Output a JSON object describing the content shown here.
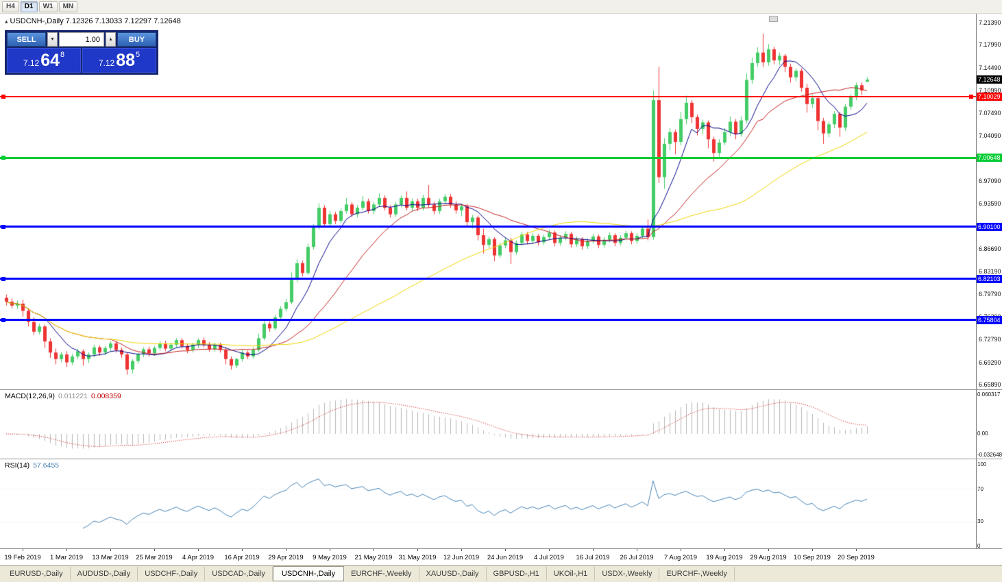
{
  "toolbar": {
    "timeframes": [
      "H4",
      "D1",
      "W1",
      "MN"
    ],
    "active": "D1"
  },
  "icons": {
    "one_click_toggle": "▴",
    "spin_down": "▼",
    "spin_up": "▲"
  },
  "trade_panel": {
    "sell_label": "SELL",
    "buy_label": "BUY",
    "volume": "1.00",
    "sell_price_prefix": "7.12",
    "sell_price_big": "64",
    "sell_price_sup": "8",
    "buy_price_prefix": "7.12",
    "buy_price_big": "88",
    "buy_price_sup": "5"
  },
  "tabs": {
    "items": [
      {
        "label": "EURUSD-,Daily",
        "active": false
      },
      {
        "label": "AUDUSD-,Daily",
        "active": false
      },
      {
        "label": "USDCHF-,Daily",
        "active": false
      },
      {
        "label": "USDCAD-,Daily",
        "active": false
      },
      {
        "label": "USDCNH-,Daily",
        "active": true
      },
      {
        "label": "EURCHF-,Weekly",
        "active": false
      },
      {
        "label": "XAUUSD-,Daily",
        "active": false
      },
      {
        "label": "GBPUSD-,H1",
        "active": false
      },
      {
        "label": "UKOil-,H1",
        "active": false
      },
      {
        "label": "USDX-,Weekly",
        "active": false
      },
      {
        "label": "EURCHF-,Weekly",
        "active": false
      }
    ]
  },
  "chart_data": {
    "type": "candlestick",
    "title": "USDCNH-,Daily",
    "symbol": "USDCNH-",
    "timeframe": "Daily",
    "ohlc": {
      "open": "7.12326",
      "high": "7.13033",
      "low": "7.12297",
      "close": "7.12648"
    },
    "ylim": [
      6.65154,
      7.22757
    ],
    "x0": 9,
    "bar_spacing": 8,
    "tick_x0": 33,
    "tick_dx": 64,
    "bull_color": "#44CC66",
    "bear_color": "#EE3333",
    "price_axis_labels": [
      "7.21390",
      "7.17990",
      "7.14490",
      "7.10990",
      "7.07490",
      "7.04090",
      "7.00590",
      "6.97090",
      "6.93590",
      "6.90190",
      "6.86690",
      "6.83190",
      "6.79790",
      "6.76290",
      "6.72790",
      "6.69290",
      "6.65890"
    ],
    "date_ticks": [
      "19 Feb 2019",
      "1 Mar 2019",
      "13 Mar 2019",
      "25 Mar 2019",
      "4 Apr 2019",
      "16 Apr 2019",
      "29 Apr 2019",
      "9 May 2019",
      "21 May 2019",
      "31 May 2019",
      "12 Jun 2019",
      "24 Jun 2019",
      "4 Jul 2019",
      "16 Jul 2019",
      "26 Jul 2019",
      "7 Aug 2019",
      "19 Aug 2019",
      "29 Aug 2019",
      "10 Sep 2019",
      "20 Sep 2019"
    ],
    "levels": [
      {
        "value": 7.10029,
        "label": "7.10029",
        "color": "#FF0000",
        "width": 2,
        "right_marker": true
      },
      {
        "value": 7.00648,
        "label": "7.00648",
        "color": "#00CC33",
        "width": 3,
        "right_marker": false
      },
      {
        "value": 6.901,
        "label": "6.90100",
        "color": "#0000FF",
        "width": 3,
        "right_marker": false
      },
      {
        "value": 6.82103,
        "label": "6.82103",
        "color": "#0000FF",
        "width": 3,
        "right_marker": false
      },
      {
        "value": 6.75804,
        "label": "6.75804",
        "color": "#0000FF",
        "width": 3,
        "right_marker": false
      }
    ],
    "current_price": {
      "value": 7.12648,
      "label": "7.12648",
      "color": "#000000"
    },
    "moving_averages": [
      {
        "period": 8,
        "color": "#00008B"
      },
      {
        "period": 20,
        "color": "#C22121"
      },
      {
        "period": 50,
        "color": "#EDD500"
      }
    ],
    "macd": {
      "label": "MACD(12,26,9)",
      "value_main": "0.011221",
      "value_signal": "0.008359",
      "fast": 12,
      "slow": 26,
      "signal": 9,
      "axis_labels": [
        "0.060317",
        "0.00",
        "-0.032648"
      ],
      "ylim": [
        -0.0381,
        0.06772
      ],
      "histogram_color": "#B6B6B6",
      "signal_color": "#CC0000"
    },
    "rsi": {
      "label": "RSI(14)",
      "value": "57.6455",
      "period": 14,
      "levels": [
        70,
        30
      ],
      "axis_labels": [
        "100",
        "70",
        "30",
        "0"
      ],
      "ylim": [
        -2.5,
        106.7
      ],
      "color": "#4682B4"
    },
    "candles": [
      [
        6.792,
        6.797,
        6.78,
        6.786
      ],
      [
        6.786,
        6.791,
        6.776,
        6.78
      ],
      [
        6.78,
        6.788,
        6.775,
        6.783
      ],
      [
        6.783,
        6.789,
        6.763,
        6.772
      ],
      [
        6.772,
        6.776,
        6.748,
        6.755
      ],
      [
        6.755,
        6.762,
        6.735,
        6.74
      ],
      [
        6.74,
        6.752,
        6.736,
        6.748
      ],
      [
        6.748,
        6.751,
        6.715,
        6.725
      ],
      [
        6.725,
        6.73,
        6.7,
        6.708
      ],
      [
        6.708,
        6.714,
        6.69,
        6.698
      ],
      [
        6.698,
        6.709,
        6.693,
        6.705
      ],
      [
        6.705,
        6.71,
        6.686,
        6.693
      ],
      [
        6.693,
        6.706,
        6.689,
        6.702
      ],
      [
        6.702,
        6.714,
        6.698,
        6.71
      ],
      [
        6.71,
        6.713,
        6.688,
        6.698
      ],
      [
        6.698,
        6.708,
        6.692,
        6.705
      ],
      [
        6.705,
        6.72,
        6.701,
        6.716
      ],
      [
        6.716,
        6.719,
        6.703,
        6.708
      ],
      [
        6.708,
        6.718,
        6.704,
        6.715
      ],
      [
        6.715,
        6.725,
        6.71,
        6.722
      ],
      [
        6.722,
        6.726,
        6.708,
        6.712
      ],
      [
        6.712,
        6.716,
        6.7,
        6.705
      ],
      [
        6.705,
        6.708,
        6.674,
        6.682
      ],
      [
        6.682,
        6.698,
        6.676,
        6.695
      ],
      [
        6.695,
        6.708,
        6.691,
        6.705
      ],
      [
        6.705,
        6.716,
        6.701,
        6.713
      ],
      [
        6.713,
        6.717,
        6.702,
        6.707
      ],
      [
        6.707,
        6.718,
        6.703,
        6.715
      ],
      [
        6.715,
        6.725,
        6.711,
        6.722
      ],
      [
        6.722,
        6.726,
        6.71,
        6.714
      ],
      [
        6.714,
        6.723,
        6.71,
        6.72
      ],
      [
        6.72,
        6.73,
        6.716,
        6.727
      ],
      [
        6.727,
        6.73,
        6.714,
        6.718
      ],
      [
        6.718,
        6.722,
        6.707,
        6.712
      ],
      [
        6.712,
        6.723,
        6.708,
        6.72
      ],
      [
        6.72,
        6.73,
        6.715,
        6.727
      ],
      [
        6.727,
        6.731,
        6.716,
        6.72
      ],
      [
        6.72,
        6.724,
        6.709,
        6.713
      ],
      [
        6.713,
        6.723,
        6.709,
        6.72
      ],
      [
        6.72,
        6.723,
        6.708,
        6.712
      ],
      [
        6.712,
        6.716,
        6.69,
        6.698
      ],
      [
        6.698,
        6.702,
        6.682,
        6.688
      ],
      [
        6.688,
        6.7,
        6.684,
        6.698
      ],
      [
        6.698,
        6.712,
        6.694,
        6.708
      ],
      [
        6.708,
        6.711,
        6.698,
        6.702
      ],
      [
        6.702,
        6.716,
        6.699,
        6.712
      ],
      [
        6.712,
        6.737,
        6.709,
        6.73
      ],
      [
        6.73,
        6.758,
        6.727,
        6.752
      ],
      [
        6.752,
        6.756,
        6.74,
        6.745
      ],
      [
        6.745,
        6.766,
        6.742,
        6.762
      ],
      [
        6.762,
        6.779,
        6.758,
        6.775
      ],
      [
        6.775,
        6.79,
        6.771,
        6.785
      ],
      [
        6.785,
        6.831,
        6.782,
        6.82
      ],
      [
        6.82,
        6.851,
        6.816,
        6.845
      ],
      [
        6.845,
        6.849,
        6.825,
        6.83
      ],
      [
        6.83,
        6.875,
        6.827,
        6.87
      ],
      [
        6.87,
        6.905,
        6.866,
        6.9
      ],
      [
        6.9,
        6.937,
        6.897,
        6.93
      ],
      [
        6.93,
        6.934,
        6.9,
        6.905
      ],
      [
        6.905,
        6.925,
        6.901,
        6.92
      ],
      [
        6.92,
        6.924,
        6.905,
        6.91
      ],
      [
        6.91,
        6.929,
        6.906,
        6.925
      ],
      [
        6.925,
        6.945,
        6.921,
        6.935
      ],
      [
        6.935,
        6.939,
        6.916,
        6.92
      ],
      [
        6.92,
        6.934,
        6.915,
        6.93
      ],
      [
        6.93,
        6.948,
        6.926,
        6.94
      ],
      [
        6.94,
        6.944,
        6.921,
        6.925
      ],
      [
        6.925,
        6.939,
        6.92,
        6.935
      ],
      [
        6.935,
        6.952,
        6.931,
        6.945
      ],
      [
        6.945,
        6.949,
        6.926,
        6.93
      ],
      [
        6.93,
        6.934,
        6.915,
        6.92
      ],
      [
        6.92,
        6.939,
        6.916,
        6.935
      ],
      [
        6.935,
        6.949,
        6.931,
        6.945
      ],
      [
        6.945,
        6.955,
        6.926,
        6.93
      ],
      [
        6.93,
        6.944,
        6.925,
        6.94
      ],
      [
        6.94,
        6.944,
        6.925,
        6.93
      ],
      [
        6.93,
        6.95,
        6.926,
        6.945
      ],
      [
        6.945,
        6.965,
        6.93,
        6.935
      ],
      [
        6.935,
        6.939,
        6.92,
        6.925
      ],
      [
        6.925,
        6.944,
        6.921,
        6.94
      ],
      [
        6.94,
        6.951,
        6.936,
        6.947
      ],
      [
        6.947,
        6.951,
        6.93,
        6.935
      ],
      [
        6.935,
        6.94,
        6.921,
        6.926
      ],
      [
        6.926,
        6.936,
        6.917,
        6.932
      ],
      [
        6.932,
        6.936,
        6.902,
        6.908
      ],
      [
        6.908,
        6.919,
        6.898,
        6.915
      ],
      [
        6.915,
        6.918,
        6.88,
        6.888
      ],
      [
        6.888,
        6.898,
        6.86,
        6.873
      ],
      [
        6.873,
        6.886,
        6.868,
        6.882
      ],
      [
        6.882,
        6.885,
        6.848,
        6.857
      ],
      [
        6.857,
        6.876,
        6.853,
        6.872
      ],
      [
        6.872,
        6.885,
        6.868,
        6.88
      ],
      [
        6.88,
        6.884,
        6.844,
        6.862
      ],
      [
        6.862,
        6.88,
        6.858,
        6.876
      ],
      [
        6.876,
        6.893,
        6.872,
        6.889
      ],
      [
        6.889,
        6.893,
        6.874,
        6.879
      ],
      [
        6.879,
        6.891,
        6.875,
        6.887
      ],
      [
        6.887,
        6.89,
        6.872,
        6.877
      ],
      [
        6.877,
        6.889,
        6.873,
        6.885
      ],
      [
        6.885,
        6.896,
        6.881,
        6.892
      ],
      [
        6.892,
        6.895,
        6.871,
        6.876
      ],
      [
        6.876,
        6.888,
        6.872,
        6.884
      ],
      [
        6.884,
        6.894,
        6.88,
        6.89
      ],
      [
        6.89,
        6.893,
        6.869,
        6.874
      ],
      [
        6.874,
        6.886,
        6.87,
        6.882
      ],
      [
        6.882,
        6.885,
        6.866,
        6.871
      ],
      [
        6.871,
        6.883,
        6.867,
        6.879
      ],
      [
        6.879,
        6.89,
        6.875,
        6.886
      ],
      [
        6.886,
        6.889,
        6.868,
        6.873
      ],
      [
        6.873,
        6.885,
        6.869,
        6.881
      ],
      [
        6.881,
        6.892,
        6.877,
        6.888
      ],
      [
        6.888,
        6.891,
        6.871,
        6.876
      ],
      [
        6.876,
        6.888,
        6.872,
        6.884
      ],
      [
        6.884,
        6.895,
        6.88,
        6.891
      ],
      [
        6.891,
        6.894,
        6.874,
        6.879
      ],
      [
        6.879,
        6.891,
        6.875,
        6.887
      ],
      [
        6.887,
        6.902,
        6.883,
        6.898
      ],
      [
        6.898,
        6.912,
        6.88,
        6.885
      ],
      [
        6.885,
        7.11,
        6.881,
        7.095
      ],
      [
        7.095,
        7.146,
        6.968,
        6.977
      ],
      [
        6.977,
        7.037,
        6.959,
        7.028
      ],
      [
        7.028,
        7.052,
        7.018,
        7.046
      ],
      [
        7.046,
        7.05,
        7.012,
        7.031
      ],
      [
        7.031,
        7.077,
        7.026,
        7.066
      ],
      [
        7.066,
        7.102,
        7.058,
        7.091
      ],
      [
        7.091,
        7.095,
        7.06,
        7.069
      ],
      [
        7.069,
        7.073,
        7.041,
        7.051
      ],
      [
        7.051,
        7.065,
        7.043,
        7.061
      ],
      [
        7.061,
        7.064,
        7.021,
        7.035
      ],
      [
        7.035,
        7.039,
        7.001,
        7.014
      ],
      [
        7.014,
        7.035,
        7.006,
        7.03
      ],
      [
        7.03,
        7.052,
        7.026,
        7.046
      ],
      [
        7.046,
        7.07,
        7.04,
        7.062
      ],
      [
        7.062,
        7.066,
        7.035,
        7.043
      ],
      [
        7.043,
        7.07,
        7.039,
        7.064
      ],
      [
        7.064,
        7.136,
        7.059,
        7.126
      ],
      [
        7.126,
        7.16,
        7.12,
        7.152
      ],
      [
        7.152,
        7.176,
        7.146,
        7.168
      ],
      [
        7.168,
        7.197,
        7.146,
        7.153
      ],
      [
        7.153,
        7.181,
        7.148,
        7.173
      ],
      [
        7.173,
        7.177,
        7.15,
        7.156
      ],
      [
        7.156,
        7.168,
        7.149,
        7.163
      ],
      [
        7.163,
        7.166,
        7.138,
        7.146
      ],
      [
        7.146,
        7.151,
        7.122,
        7.13
      ],
      [
        7.13,
        7.144,
        7.124,
        7.14
      ],
      [
        7.14,
        7.144,
        7.108,
        7.114
      ],
      [
        7.114,
        7.12,
        7.076,
        7.089
      ],
      [
        7.089,
        7.103,
        7.083,
        7.098
      ],
      [
        7.098,
        7.101,
        7.049,
        7.063
      ],
      [
        7.063,
        7.068,
        7.028,
        7.044
      ],
      [
        7.044,
        7.062,
        7.038,
        7.058
      ],
      [
        7.058,
        7.078,
        7.052,
        7.074
      ],
      [
        7.074,
        7.077,
        7.039,
        7.053
      ],
      [
        7.053,
        7.089,
        7.048,
        7.085
      ],
      [
        7.085,
        7.104,
        7.08,
        7.1
      ],
      [
        7.1,
        7.122,
        7.095,
        7.118
      ],
      [
        7.118,
        7.122,
        7.103,
        7.11
      ],
      [
        7.12326,
        7.13033,
        7.12297,
        7.12648
      ]
    ]
  }
}
